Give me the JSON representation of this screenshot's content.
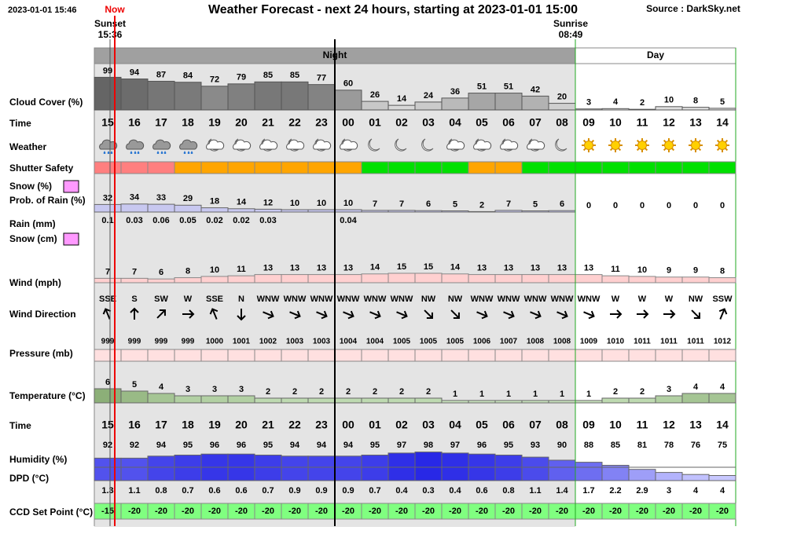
{
  "header": {
    "timestamp": "2023-01-01 15:46",
    "now": "Now",
    "title": "Weather Forecast - next 24 hours, starting at 2023-01-01 15:00",
    "source": "Source : DarkSky.net",
    "sunset": "Sunset",
    "sunset_time": "15:36",
    "sunrise": "Sunrise",
    "sunrise_time": "08:49"
  },
  "periods": {
    "night": "Night",
    "day": "Day"
  },
  "hours": [
    "15",
    "16",
    "17",
    "18",
    "19",
    "20",
    "21",
    "22",
    "23",
    "00",
    "01",
    "02",
    "03",
    "04",
    "05",
    "06",
    "07",
    "08",
    "09",
    "10",
    "11",
    "12",
    "13",
    "14"
  ],
  "labels": {
    "cloud_cover": "Cloud Cover (%)",
    "time": "Time",
    "weather": "Weather",
    "shutter": "Shutter Safety",
    "snow_pct": "Snow (%)",
    "rain_prob": "Prob. of Rain (%)",
    "rain": "Rain (mm)",
    "snow_cm": "Snow (cm)",
    "wind": "Wind (mph)",
    "wind_dir": "Wind Direction",
    "pressure": "Pressure (mb)",
    "temperature": "Temperature (°C)",
    "time2": "Time",
    "humidity": "Humidity (%)",
    "dpd": "DPD (°C)",
    "ccd": "CCD Set Point (°C)"
  },
  "cloud_cover": [
    99,
    94,
    87,
    84,
    72,
    79,
    85,
    85,
    77,
    60,
    26,
    14,
    24,
    36,
    51,
    51,
    42,
    20,
    3,
    4,
    2,
    10,
    8,
    5
  ],
  "weather": [
    "rain",
    "rain",
    "rain",
    "rain",
    "partly-cloudy-night",
    "partly-cloudy-night",
    "partly-cloudy-night",
    "partly-cloudy-night",
    "partly-cloudy-night",
    "partly-cloudy-night",
    "clear-night",
    "clear-night",
    "clear-night",
    "partly-cloudy-night",
    "partly-cloudy-night",
    "partly-cloudy-night",
    "partly-cloudy-night",
    "clear-night",
    "clear-day",
    "clear-day",
    "clear-day",
    "clear-day",
    "clear-day",
    "clear-day"
  ],
  "shutter_colors": [
    "#ff7f7f",
    "#ff7f7f",
    "#ff7f7f",
    "#ffa500",
    "#ffa500",
    "#ffa500",
    "#ffa500",
    "#ffa500",
    "#ffa500",
    "#ffa500",
    "#00e000",
    "#00e000",
    "#00e000",
    "#00e000",
    "#ffa500",
    "#ffa500",
    "#00e000",
    "#00e000",
    "#00e000",
    "#00e000",
    "#00e000",
    "#00e000",
    "#00e000",
    "#00e000"
  ],
  "rain_prob": [
    32,
    34,
    33,
    29,
    18,
    14,
    12,
    10,
    10,
    10,
    7,
    7,
    6,
    5,
    2,
    7,
    5,
    6,
    0,
    0,
    0,
    0,
    0,
    0
  ],
  "rain": [
    0.1,
    0.03,
    0.06,
    0.05,
    0.02,
    0.02,
    0.03,
    null,
    null,
    0.04,
    null,
    null,
    null,
    null,
    null,
    null,
    null,
    null,
    null,
    null,
    null,
    null,
    null,
    null
  ],
  "wind": [
    7,
    7,
    6,
    8,
    10,
    11,
    13,
    13,
    13,
    13,
    14,
    15,
    15,
    14,
    13,
    13,
    13,
    13,
    13,
    11,
    10,
    9,
    9,
    8
  ],
  "wind_dir": [
    "SSE",
    "S",
    "SW",
    "W",
    "SSE",
    "N",
    "WNW",
    "WNW",
    "WNW",
    "WNW",
    "WNW",
    "WNW",
    "NW",
    "NW",
    "WNW",
    "WNW",
    "WNW",
    "WNW",
    "WNW",
    "W",
    "W",
    "W",
    "NW",
    "SSW"
  ],
  "wind_bearing": [
    157.5,
    180,
    225,
    270,
    157.5,
    0,
    292.5,
    292.5,
    292.5,
    292.5,
    292.5,
    292.5,
    315,
    315,
    292.5,
    292.5,
    292.5,
    292.5,
    292.5,
    270,
    270,
    270,
    315,
    202.5
  ],
  "pressure": [
    999,
    999,
    999,
    999,
    1000,
    1001,
    1002,
    1003,
    1003,
    1004,
    1004,
    1005,
    1005,
    1005,
    1006,
    1007,
    1008,
    1008,
    1009,
    1010,
    1011,
    1011,
    1011,
    1012
  ],
  "temperature": [
    6,
    5,
    4,
    3,
    3,
    3,
    2,
    2,
    2,
    2,
    2,
    2,
    2,
    1,
    1,
    1,
    1,
    1,
    1,
    2,
    2,
    3,
    4,
    4
  ],
  "humidity": [
    92,
    92,
    94,
    95,
    96,
    96,
    95,
    94,
    94,
    94,
    95,
    97,
    98,
    97,
    96,
    95,
    93,
    90,
    88,
    85,
    81,
    78,
    76,
    75
  ],
  "dpd": [
    1.3,
    1.1,
    0.8,
    0.7,
    0.6,
    0.6,
    0.7,
    0.9,
    0.9,
    0.9,
    0.7,
    0.4,
    0.3,
    0.4,
    0.6,
    0.8,
    1.1,
    1.4,
    1.7,
    2.2,
    2.9,
    3,
    4,
    4
  ],
  "ccd": [
    -15,
    -20,
    -20,
    -20,
    -20,
    -20,
    -20,
    -20,
    -20,
    -20,
    -20,
    -20,
    -20,
    -20,
    -20,
    -20,
    -20,
    -20,
    -20,
    -20,
    -20,
    -20,
    -20,
    -20
  ]
}
